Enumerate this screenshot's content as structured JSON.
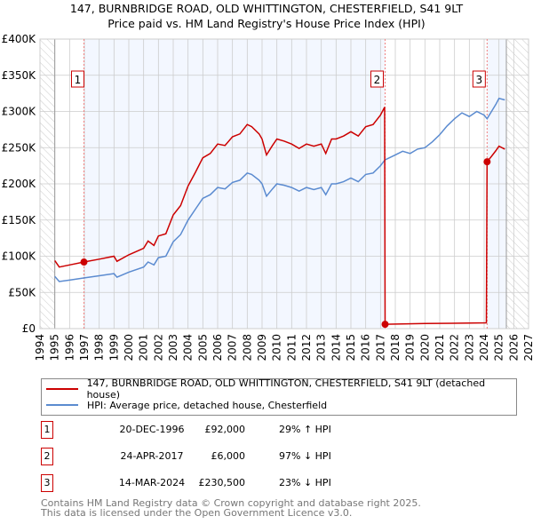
{
  "chart_data": {
    "type": "line",
    "title": "147, BURNBRIDGE ROAD, OLD WHITTINGTON, CHESTERFIELD, S41 9LT",
    "subtitle": "Price paid vs. HM Land Registry's House Price Index (HPI)",
    "xlim": [
      1994,
      2027
    ],
    "ylim": [
      0,
      400000
    ],
    "x_ticks": [
      "1994",
      "1995",
      "1996",
      "1997",
      "1998",
      "1999",
      "2000",
      "2001",
      "2002",
      "2003",
      "2004",
      "2005",
      "2006",
      "2007",
      "2008",
      "2009",
      "2010",
      "2011",
      "2012",
      "2013",
      "2014",
      "2015",
      "2016",
      "2017",
      "2018",
      "2019",
      "2020",
      "2021",
      "2022",
      "2023",
      "2024",
      "2025",
      "2026",
      "2027"
    ],
    "y_ticks": [
      {
        "v": 0,
        "label": "£0"
      },
      {
        "v": 50000,
        "label": "£50K"
      },
      {
        "v": 100000,
        "label": "£100K"
      },
      {
        "v": 150000,
        "label": "£150K"
      },
      {
        "v": 200000,
        "label": "£200K"
      },
      {
        "v": 250000,
        "label": "£250K"
      },
      {
        "v": 300000,
        "label": "£300K"
      },
      {
        "v": 350000,
        "label": "£350K"
      },
      {
        "v": 400000,
        "label": "£400K"
      }
    ],
    "grid": true,
    "series": [
      {
        "name": "147, BURNBRIDGE ROAD, OLD WHITTINGTON, CHESTERFIELD, S41 9LT (detached house)",
        "color": "#cc0000",
        "points": [
          [
            1995,
            94
          ],
          [
            1995.3,
            85
          ],
          [
            1996,
            88
          ],
          [
            1996.97,
            92
          ],
          [
            1998,
            96
          ],
          [
            1999,
            100
          ],
          [
            1999.2,
            93
          ],
          [
            2000,
            102
          ],
          [
            2001,
            111
          ],
          [
            2001.3,
            121
          ],
          [
            2001.7,
            115
          ],
          [
            2002,
            128
          ],
          [
            2002.5,
            131
          ],
          [
            2003,
            157
          ],
          [
            2003.5,
            170
          ],
          [
            2004,
            197
          ],
          [
            2004.5,
            216
          ],
          [
            2005,
            236
          ],
          [
            2005.5,
            242
          ],
          [
            2006,
            255
          ],
          [
            2006.5,
            253
          ],
          [
            2007,
            265
          ],
          [
            2007.5,
            269
          ],
          [
            2008,
            282
          ],
          [
            2008.3,
            279
          ],
          [
            2008.8,
            269
          ],
          [
            2009,
            262
          ],
          [
            2009.3,
            240
          ],
          [
            2009.7,
            253
          ],
          [
            2010,
            262
          ],
          [
            2010.5,
            259
          ],
          [
            2011,
            255
          ],
          [
            2011.5,
            249
          ],
          [
            2012,
            255
          ],
          [
            2012.5,
            252
          ],
          [
            2013,
            255
          ],
          [
            2013.3,
            242
          ],
          [
            2013.7,
            262
          ],
          [
            2014,
            262
          ],
          [
            2014.5,
            266
          ],
          [
            2015,
            272
          ],
          [
            2015.5,
            266
          ],
          [
            2016,
            279
          ],
          [
            2016.5,
            282
          ],
          [
            2017,
            295
          ],
          [
            2017.28,
            306
          ],
          [
            2017.31,
            6
          ],
          [
            2020,
            7
          ],
          [
            2024.15,
            8
          ],
          [
            2024.2,
            230.5
          ],
          [
            2024.5,
            238
          ],
          [
            2024.8,
            246
          ],
          [
            2025,
            252
          ],
          [
            2025.4,
            248
          ]
        ]
      },
      {
        "name": "HPI: Average price, detached house, Chesterfield",
        "color": "#5b8bd0",
        "points": [
          [
            1995,
            72
          ],
          [
            1995.3,
            65
          ],
          [
            1996,
            67
          ],
          [
            1997,
            70
          ],
          [
            1998,
            73
          ],
          [
            1999,
            76
          ],
          [
            1999.2,
            71
          ],
          [
            2000,
            78
          ],
          [
            2001,
            85
          ],
          [
            2001.3,
            92
          ],
          [
            2001.7,
            88
          ],
          [
            2002,
            98
          ],
          [
            2002.5,
            100
          ],
          [
            2003,
            120
          ],
          [
            2003.5,
            130
          ],
          [
            2004,
            150
          ],
          [
            2004.5,
            165
          ],
          [
            2005,
            180
          ],
          [
            2005.5,
            185
          ],
          [
            2006,
            195
          ],
          [
            2006.5,
            193
          ],
          [
            2007,
            202
          ],
          [
            2007.5,
            205
          ],
          [
            2008,
            215
          ],
          [
            2008.3,
            213
          ],
          [
            2008.8,
            205
          ],
          [
            2009,
            200
          ],
          [
            2009.3,
            183
          ],
          [
            2009.7,
            193
          ],
          [
            2010,
            200
          ],
          [
            2010.5,
            198
          ],
          [
            2011,
            195
          ],
          [
            2011.5,
            190
          ],
          [
            2012,
            195
          ],
          [
            2012.5,
            192
          ],
          [
            2013,
            195
          ],
          [
            2013.3,
            185
          ],
          [
            2013.7,
            200
          ],
          [
            2014,
            200
          ],
          [
            2014.5,
            203
          ],
          [
            2015,
            208
          ],
          [
            2015.5,
            203
          ],
          [
            2016,
            213
          ],
          [
            2016.5,
            215
          ],
          [
            2017,
            225
          ],
          [
            2017.3,
            233
          ],
          [
            2018,
            240
          ],
          [
            2018.5,
            245
          ],
          [
            2019,
            242
          ],
          [
            2019.5,
            248
          ],
          [
            2020,
            250
          ],
          [
            2020.5,
            258
          ],
          [
            2021,
            268
          ],
          [
            2021.5,
            280
          ],
          [
            2022,
            290
          ],
          [
            2022.5,
            298
          ],
          [
            2023,
            293
          ],
          [
            2023.5,
            300
          ],
          [
            2024,
            295
          ],
          [
            2024.2,
            290
          ],
          [
            2024.5,
            300
          ],
          [
            2024.8,
            310
          ],
          [
            2025,
            318
          ],
          [
            2025.4,
            316
          ]
        ]
      }
    ],
    "sales": [
      {
        "n": "1",
        "x": 1996.97,
        "value": 92000,
        "date": "20-DEC-1996",
        "price": "£92,000",
        "hpi": "29% ↑ HPI"
      },
      {
        "n": "2",
        "x": 2017.31,
        "value": 6000,
        "date": "24-APR-2017",
        "price": "£6,000",
        "hpi": "97% ↓ HPI"
      },
      {
        "n": "3",
        "x": 2024.2,
        "value": 230500,
        "date": "14-MAR-2024",
        "price": "£230,500",
        "hpi": "23% ↓ HPI"
      }
    ],
    "data_range": [
      1995,
      2025.5
    ]
  },
  "legend": {
    "red": "147, BURNBRIDGE ROAD, OLD WHITTINGTON, CHESTERFIELD, S41 9LT (detached house)",
    "blue": "HPI: Average price, detached house, Chesterfield"
  },
  "footer": {
    "line1": "Contains HM Land Registry data © Crown copyright and database right 2025.",
    "line2": "This data is licensed under the Open Government Licence v3.0."
  }
}
